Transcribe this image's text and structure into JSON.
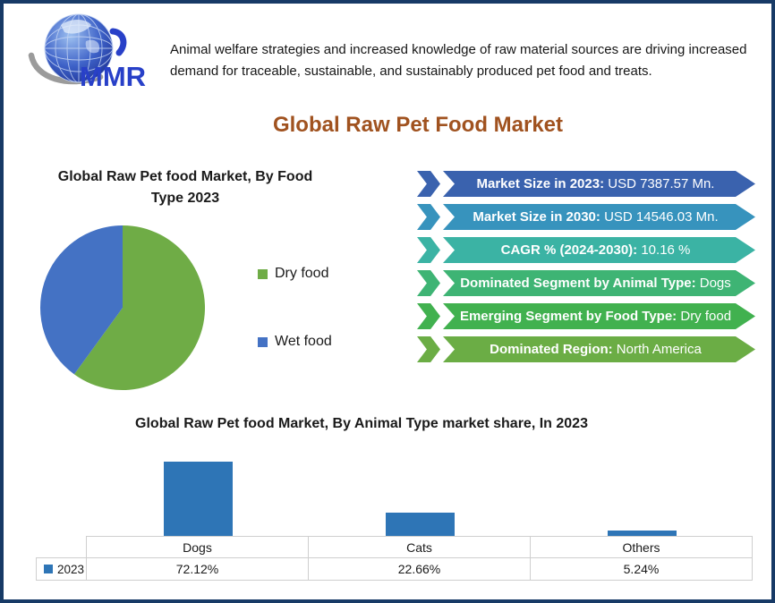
{
  "frame_color": "#173A66",
  "header": {
    "logo_text": "MMR",
    "logo_accent_color": "#2840C8",
    "tagline_lines": [
      "Animal welfare strategies and increased knowledge of raw material sources are driving increased",
      "demand for traceable, sustainable, and sustainably produced pet food and treats."
    ]
  },
  "main_title": {
    "text": "Global Raw Pet Food Market",
    "color": "#A0521F"
  },
  "stat_banners": [
    {
      "label": "Market Size in 2023:",
      "value": "USD 7387.57 Mn.",
      "color": "#3A62AE"
    },
    {
      "label": "Market Size in 2030:",
      "value": "USD 14546.03 Mn.",
      "color": "#3793BD"
    },
    {
      "label": "CAGR % (2024-2030):",
      "value": "10.16 %",
      "color": "#3BB3A4"
    },
    {
      "label": "Dominated Segment by Animal Type:",
      "value": "Dogs",
      "color": "#3EB474"
    },
    {
      "label": "Emerging Segment by Food Type:",
      "value": "Dry food",
      "color": "#41B14F"
    },
    {
      "label": "Dominated Region:",
      "value": "North America",
      "color": "#6BAD45"
    }
  ],
  "chart_data": [
    {
      "type": "pie",
      "title": "Global Raw Pet food Market, By Food Type 2023",
      "labels": [
        "Dry food",
        "Wet food"
      ],
      "values": [
        60,
        40
      ],
      "colors": [
        "#6FAC46",
        "#4472C4"
      ],
      "legend_position": "right"
    },
    {
      "type": "bar",
      "title": "Global Raw Pet food Market, By Animal Type market share, In 2023",
      "categories": [
        "Dogs",
        "Cats",
        "Others"
      ],
      "series": [
        {
          "name": "2023",
          "values": [
            72.12,
            22.66,
            5.24
          ]
        }
      ],
      "value_labels": [
        "72.12%",
        "22.66%",
        "5.24%"
      ],
      "bar_color": "#2E75B6",
      "ylim": [
        0,
        80
      ],
      "grid": false,
      "data_table": true,
      "legend_position": "bottom-left"
    }
  ]
}
